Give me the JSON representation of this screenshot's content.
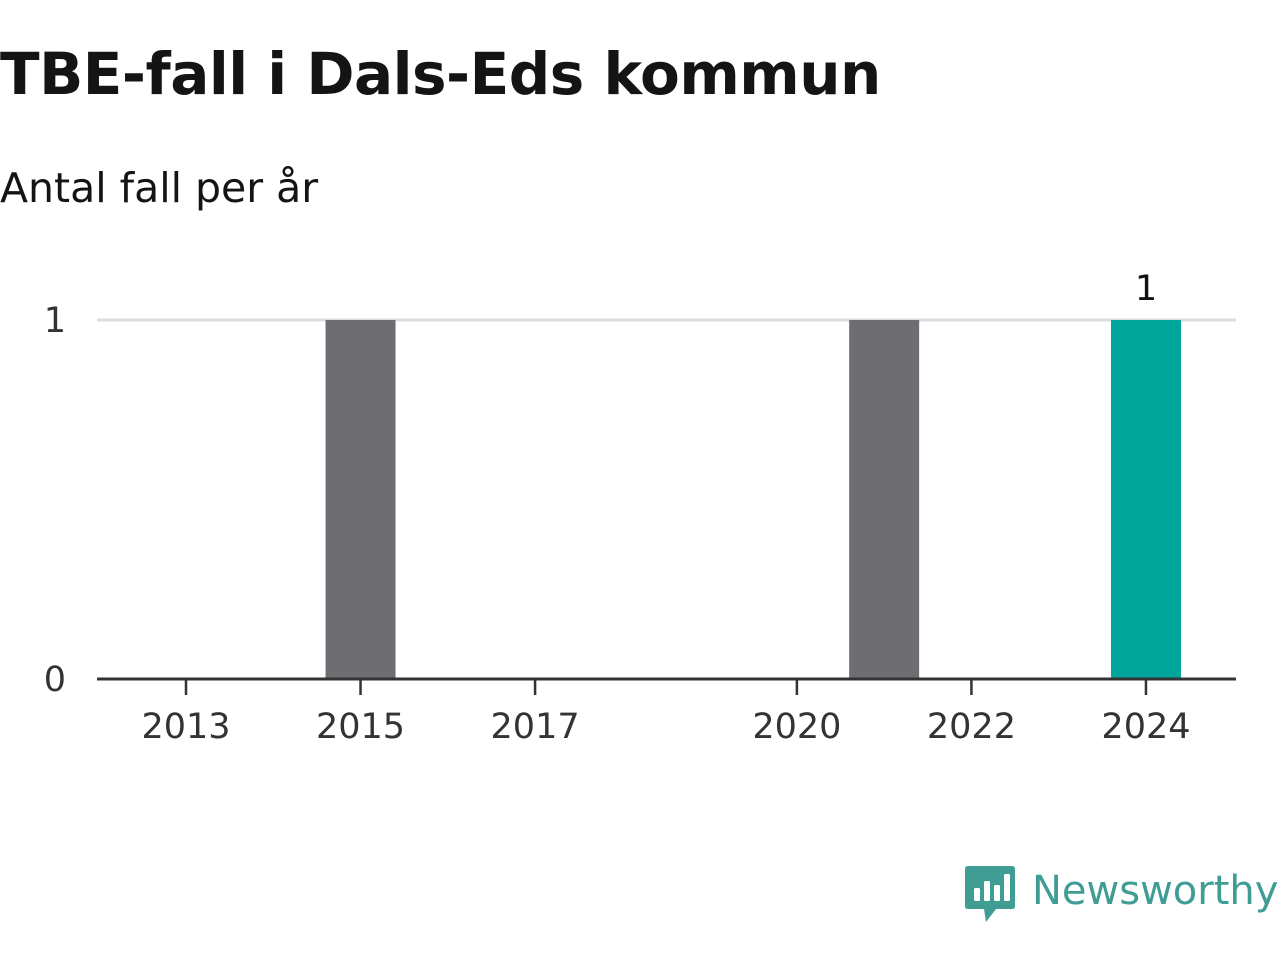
{
  "header": {
    "title": "TBE-fall i Dals-Eds kommun",
    "subtitle": "Antal fall per år"
  },
  "chart_data": {
    "type": "bar",
    "title": "TBE-fall i Dals-Eds kommun",
    "subtitle": "Antal fall per år",
    "xlabel": "",
    "ylabel": "",
    "x": [
      2013,
      2014,
      2015,
      2016,
      2017,
      2018,
      2019,
      2020,
      2021,
      2022,
      2023,
      2024
    ],
    "values": [
      0,
      0,
      1,
      0,
      0,
      0,
      0,
      0,
      1,
      0,
      0,
      1
    ],
    "x_ticks": [
      "2013",
      "2015",
      "2017",
      "2020",
      "2022",
      "2024"
    ],
    "y_ticks": [
      0,
      1
    ],
    "ylim": [
      0,
      1
    ],
    "grid": "horizontal",
    "data_labels": [
      {
        "x": 2024,
        "label": "1"
      }
    ],
    "colors": {
      "bar": "#6e6d72",
      "highlight_bar": "#00a69a",
      "highlight_x": 2024,
      "gridline": "#dddddd",
      "axis": "#333333"
    }
  },
  "brand": {
    "name": "Newsworthy",
    "icon": "newsworthy-logo-icon",
    "color": "#3f9d94"
  }
}
